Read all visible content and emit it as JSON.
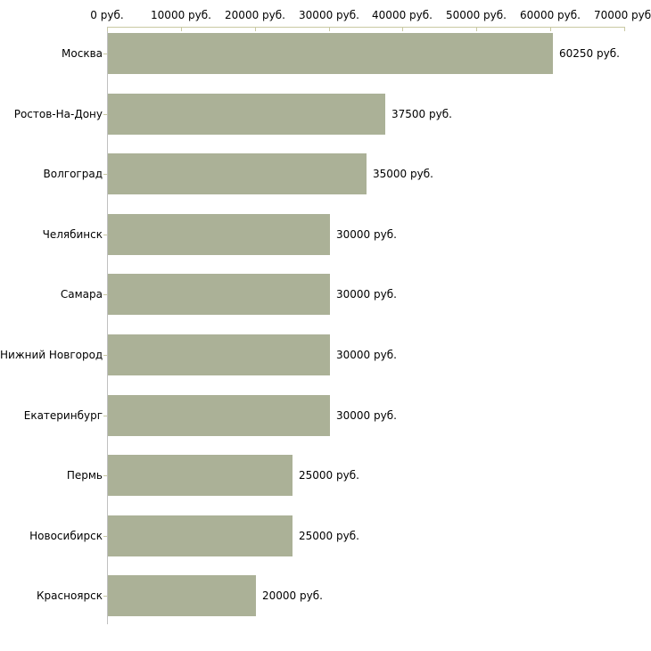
{
  "chart_data": {
    "type": "bar",
    "orientation": "horizontal",
    "title": "",
    "xlabel": "",
    "ylabel": "",
    "categories": [
      "Москва",
      "Ростов-На-Дону",
      "Волгоград",
      "Челябинск",
      "Самара",
      "Нижний Новгород",
      "Екатеринбург",
      "Пермь",
      "Новосибирск",
      "Красноярск"
    ],
    "values": [
      60250,
      37500,
      35000,
      30000,
      30000,
      30000,
      30000,
      25000,
      25000,
      20000
    ],
    "value_labels": [
      "60250 руб.",
      "37500 руб.",
      "35000 руб.",
      "30000 руб.",
      "30000 руб.",
      "30000 руб.",
      "30000 руб.",
      "25000 руб.",
      "25000 руб.",
      "20000 руб."
    ],
    "x_axis": {
      "position": "top",
      "min": 0,
      "max": 70000,
      "ticks": [
        0,
        10000,
        20000,
        30000,
        40000,
        50000,
        60000,
        70000
      ],
      "tick_labels": [
        "0 руб.",
        "10000 руб.",
        "20000 руб.",
        "30000 руб.",
        "40000 руб.",
        "50000 руб.",
        "60000 руб.",
        "70000 руб."
      ]
    },
    "grid": false,
    "legend": false,
    "colors": {
      "bar_fill": "#abb197",
      "value_axis_line": "#c9c9a3",
      "category_axis_line": "#c0c0c0",
      "text": "#000000",
      "background": "#ffffff"
    }
  }
}
